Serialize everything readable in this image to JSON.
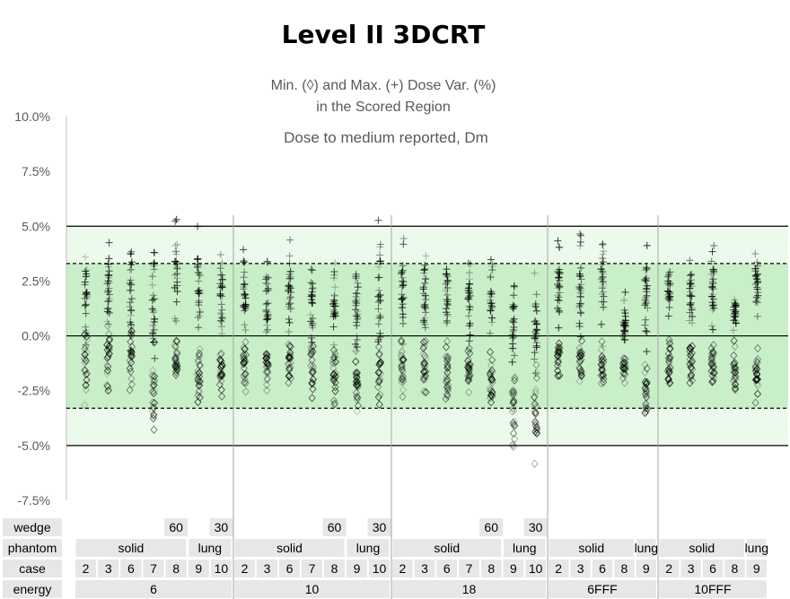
{
  "title": "Level II 3DCRT",
  "subtitle_lines": [
    "Min. (◊) and Max. (+) Dose Var. (%)",
    "in the Scored Region"
  ],
  "note": "Dose to medium reported, Dm",
  "colors": {
    "outer_band": "#ebfaeb",
    "inner_band": "#c9efc9",
    "marker": "#000000",
    "cell_fill": "#e7e7e7",
    "section_line": "#a6a6a6"
  },
  "chart_data": {
    "type": "scatter",
    "title": "Level II 3DCRT",
    "ylabel": "Min. (◊) and Max. (+) Dose Var. (%)",
    "ylim": [
      -7.5,
      10.0
    ],
    "y_ticks": [
      "10.0%",
      "7.5%",
      "5.0%",
      "2.5%",
      "0.0%",
      "-2.5%",
      "-5.0%",
      "-7.5%"
    ],
    "y_tick_values": [
      10,
      7.5,
      5,
      2.5,
      0,
      -2.5,
      -5,
      -7.5
    ],
    "tolerance_bands": [
      {
        "from": -5.0,
        "to": 5.0,
        "style": "solid"
      },
      {
        "from": -3.3,
        "to": 3.3,
        "style": "dashed"
      }
    ],
    "reference_line": 0.0,
    "row_labels": [
      "wedge",
      "phantom",
      "case",
      "energy"
    ],
    "columns": [
      {
        "energy": "6",
        "phantom": "solid",
        "case": "2",
        "wedge": "",
        "max_range": [
          -1.0,
          4.4
        ],
        "min_range": [
          -3.6,
          0.5
        ]
      },
      {
        "energy": "6",
        "phantom": "solid",
        "case": "3",
        "wedge": "",
        "max_range": [
          -1.2,
          4.7
        ],
        "min_range": [
          -2.8,
          0.6
        ]
      },
      {
        "energy": "6",
        "phantom": "solid",
        "case": "6",
        "wedge": "",
        "max_range": [
          -1.4,
          4.8
        ],
        "min_range": [
          -2.7,
          0.5
        ]
      },
      {
        "energy": "6",
        "phantom": "solid",
        "case": "7",
        "wedge": "",
        "max_range": [
          -1.1,
          5.2
        ],
        "min_range": [
          -5.7,
          0.4
        ]
      },
      {
        "energy": "6",
        "phantom": "solid",
        "case": "8",
        "wedge": "60",
        "max_range": [
          -0.5,
          5.7
        ],
        "min_range": [
          -2.4,
          0.3
        ]
      },
      {
        "energy": "6",
        "phantom": "lung",
        "case": "9",
        "wedge": "",
        "max_range": [
          -0.8,
          5.2
        ],
        "min_range": [
          -3.4,
          0.1
        ]
      },
      {
        "energy": "6",
        "phantom": "lung",
        "case": "10",
        "wedge": "30",
        "max_range": [
          -0.9,
          4.5
        ],
        "min_range": [
          -3.2,
          -0.3
        ]
      },
      {
        "energy": "10",
        "phantom": "solid",
        "case": "2",
        "wedge": "",
        "max_range": [
          -0.8,
          4.4
        ],
        "min_range": [
          -3.2,
          0.2
        ]
      },
      {
        "energy": "10",
        "phantom": "solid",
        "case": "3",
        "wedge": "",
        "max_range": [
          -0.6,
          4.4
        ],
        "min_range": [
          -2.8,
          0.3
        ]
      },
      {
        "energy": "10",
        "phantom": "solid",
        "case": "6",
        "wedge": "",
        "max_range": [
          -0.7,
          4.4
        ],
        "min_range": [
          -2.9,
          0.2
        ]
      },
      {
        "energy": "10",
        "phantom": "solid",
        "case": "7",
        "wedge": "",
        "max_range": [
          -0.8,
          4.3
        ],
        "min_range": [
          -3.0,
          0.1
        ]
      },
      {
        "energy": "10",
        "phantom": "solid",
        "case": "8",
        "wedge": "60",
        "max_range": [
          -1.0,
          4.1
        ],
        "min_range": [
          -3.2,
          -0.2
        ]
      },
      {
        "energy": "10",
        "phantom": "lung",
        "case": "9",
        "wedge": "",
        "max_range": [
          -1.2,
          4.0
        ],
        "min_range": [
          -3.9,
          -0.4
        ]
      },
      {
        "energy": "10",
        "phantom": "lung",
        "case": "10",
        "wedge": "30",
        "max_range": [
          -1.0,
          5.7
        ],
        "min_range": [
          -3.6,
          -0.3
        ]
      },
      {
        "energy": "18",
        "phantom": "solid",
        "case": "2",
        "wedge": "",
        "max_range": [
          -0.5,
          4.8
        ],
        "min_range": [
          -3.3,
          0.0
        ]
      },
      {
        "energy": "18",
        "phantom": "solid",
        "case": "3",
        "wedge": "",
        "max_range": [
          -0.8,
          4.6
        ],
        "min_range": [
          -3.0,
          0.1
        ]
      },
      {
        "energy": "18",
        "phantom": "solid",
        "case": "6",
        "wedge": "",
        "max_range": [
          -0.9,
          4.2
        ],
        "min_range": [
          -3.1,
          0.0
        ]
      },
      {
        "energy": "18",
        "phantom": "solid",
        "case": "7",
        "wedge": "",
        "max_range": [
          -0.7,
          3.9
        ],
        "min_range": [
          -3.0,
          -0.2
        ]
      },
      {
        "energy": "18",
        "phantom": "solid",
        "case": "8",
        "wedge": "60",
        "max_range": [
          -1.1,
          3.5
        ],
        "min_range": [
          -3.4,
          -0.5
        ]
      },
      {
        "energy": "18",
        "phantom": "lung",
        "case": "9",
        "wedge": "",
        "max_range": [
          -1.8,
          3.3
        ],
        "min_range": [
          -5.4,
          -1.0
        ]
      },
      {
        "energy": "18",
        "phantom": "lung",
        "case": "10",
        "wedge": "30",
        "max_range": [
          -1.9,
          2.9
        ],
        "min_range": [
          -6.0,
          -1.2
        ]
      },
      {
        "energy": "6FFF",
        "phantom": "solid",
        "case": "2",
        "wedge": "",
        "max_range": [
          -0.6,
          4.6
        ],
        "min_range": [
          -2.9,
          0.6
        ]
      },
      {
        "energy": "6FFF",
        "phantom": "solid",
        "case": "3",
        "wedge": "",
        "max_range": [
          -0.7,
          5.0
        ],
        "min_range": [
          -2.8,
          0.3
        ]
      },
      {
        "energy": "6FFF",
        "phantom": "solid",
        "case": "6",
        "wedge": "",
        "max_range": [
          -0.8,
          5.3
        ],
        "min_range": [
          -2.9,
          0.3
        ]
      },
      {
        "energy": "6FFF",
        "phantom": "solid",
        "case": "8",
        "wedge": "",
        "max_range": [
          -1.0,
          2.2
        ],
        "min_range": [
          -3.0,
          0.0
        ]
      },
      {
        "energy": "6FFF",
        "phantom": "lung",
        "case": "9",
        "wedge": "",
        "max_range": [
          -1.2,
          4.9
        ],
        "min_range": [
          -4.1,
          -0.4
        ]
      },
      {
        "energy": "10FFF",
        "phantom": "solid",
        "case": "2",
        "wedge": "",
        "max_range": [
          0.5,
          3.5
        ],
        "min_range": [
          -2.5,
          0.2
        ]
      },
      {
        "energy": "10FFF",
        "phantom": "solid",
        "case": "3",
        "wedge": "",
        "max_range": [
          0.3,
          4.0
        ],
        "min_range": [
          -2.3,
          0.3
        ]
      },
      {
        "energy": "10FFF",
        "phantom": "solid",
        "case": "6",
        "wedge": "",
        "max_range": [
          0.0,
          4.6
        ],
        "min_range": [
          -2.6,
          0.2
        ]
      },
      {
        "energy": "10FFF",
        "phantom": "solid",
        "case": "8",
        "wedge": "",
        "max_range": [
          -0.4,
          2.6
        ],
        "min_range": [
          -2.9,
          -0.2
        ]
      },
      {
        "energy": "10FFF",
        "phantom": "lung",
        "case": "9",
        "wedge": "",
        "max_range": [
          -0.6,
          5.0
        ],
        "min_range": [
          -3.3,
          -0.4
        ]
      }
    ],
    "header_groups": {
      "energy": [
        {
          "label": "6",
          "cols": [
            0,
            6
          ]
        },
        {
          "label": "10",
          "cols": [
            7,
            13
          ]
        },
        {
          "label": "18",
          "cols": [
            14,
            20
          ]
        },
        {
          "label": "6FFF",
          "cols": [
            21,
            25
          ]
        },
        {
          "label": "10FFF",
          "cols": [
            26,
            30
          ]
        }
      ],
      "phantom": [
        {
          "label": "solid",
          "cols": [
            0,
            4
          ]
        },
        {
          "label": "lung",
          "cols": [
            5,
            6
          ]
        },
        {
          "label": "solid",
          "cols": [
            7,
            11
          ]
        },
        {
          "label": "lung",
          "cols": [
            12,
            13
          ]
        },
        {
          "label": "solid",
          "cols": [
            14,
            18
          ]
        },
        {
          "label": "lung",
          "cols": [
            19,
            20
          ]
        },
        {
          "label": "solid",
          "cols": [
            21,
            24
          ]
        },
        {
          "label": "lung",
          "cols": [
            25,
            25
          ]
        },
        {
          "label": "solid",
          "cols": [
            26,
            29
          ]
        },
        {
          "label": "lung",
          "cols": [
            30,
            30
          ]
        }
      ]
    }
  }
}
